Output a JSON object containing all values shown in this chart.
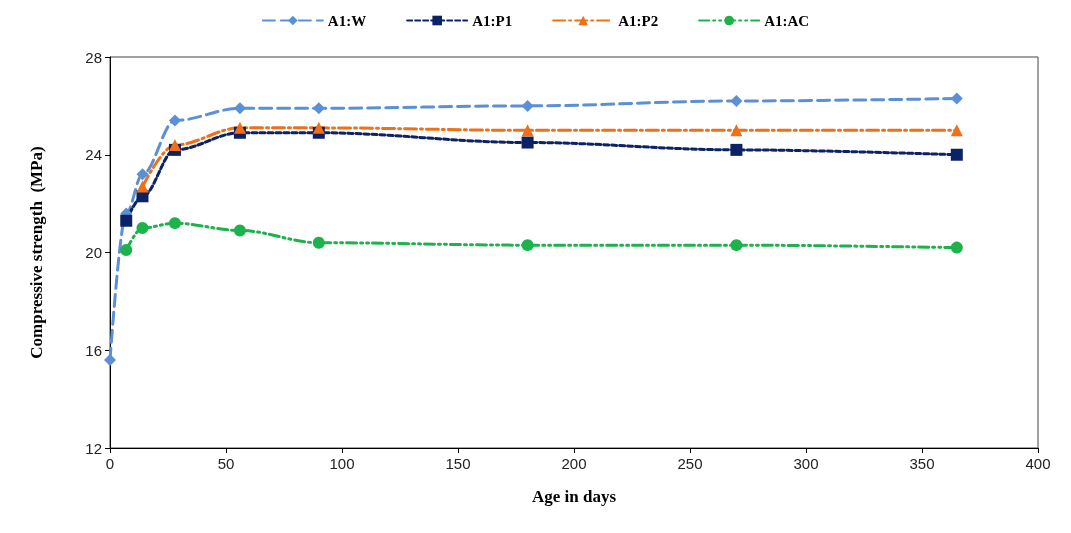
{
  "chart_data": {
    "type": "line",
    "xlabel": "Age in days",
    "ylabel": "Compressive strength  (MPa)",
    "xlim": [
      0,
      400
    ],
    "xticks": [
      0,
      50,
      100,
      150,
      200,
      250,
      300,
      350,
      400
    ],
    "ylim": [
      12,
      28
    ],
    "yticks": [
      12,
      16,
      20,
      24,
      28
    ],
    "grid": false,
    "legend": "top",
    "line_style": "dashed",
    "series": [
      {
        "name": "A1:W",
        "color": "#5b8fd6",
        "marker": "diamond",
        "x": [
          0,
          7,
          14,
          28,
          56,
          90,
          180,
          270,
          365
        ],
        "values": [
          15.6,
          21.6,
          23.2,
          25.4,
          25.9,
          25.9,
          26.0,
          26.2,
          26.3
        ]
      },
      {
        "name": "A1:P1",
        "color": "#0c2266",
        "marker": "square",
        "x": [
          7,
          14,
          28,
          56,
          90,
          180,
          270,
          365
        ],
        "values": [
          21.3,
          22.3,
          24.2,
          24.9,
          24.9,
          24.5,
          24.2,
          24.0
        ]
      },
      {
        "name": "A1:P2",
        "color": "#f07018",
        "marker": "triangle",
        "x": [
          14,
          28,
          56,
          90,
          180,
          270,
          365
        ],
        "values": [
          22.7,
          24.4,
          25.1,
          25.1,
          25.0,
          25.0,
          25.0
        ]
      },
      {
        "name": "A1:AC",
        "color": "#1db24c",
        "marker": "circle",
        "x": [
          7,
          14,
          28,
          56,
          90,
          180,
          270,
          365
        ],
        "values": [
          20.1,
          21.0,
          21.2,
          20.9,
          20.4,
          20.3,
          20.3,
          20.2
        ]
      }
    ]
  }
}
